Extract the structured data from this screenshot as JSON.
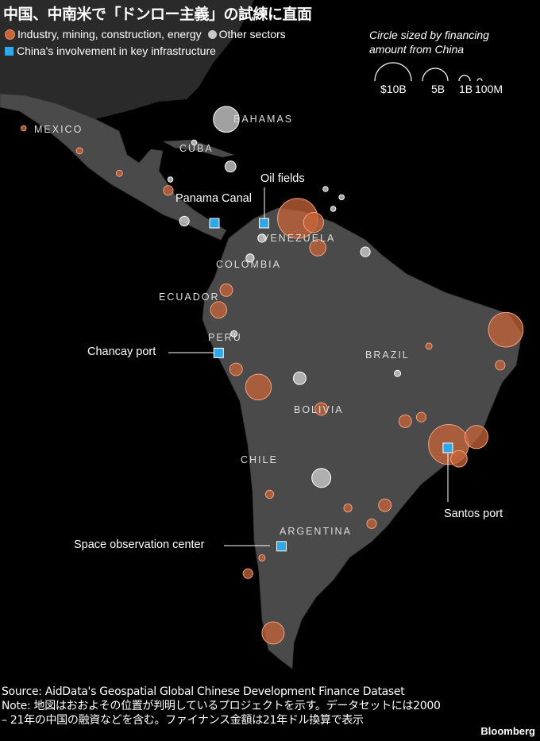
{
  "title": "中国、中南米で「ドンロー主義」の試練に直面",
  "legend": {
    "industry": {
      "label": "Industry, mining, construction, energy",
      "color": "#c8643a"
    },
    "other": {
      "label": "Other sectors",
      "color": "#c8c8c8"
    },
    "infrastructure": {
      "label": "China's involvement in key infrastructure",
      "color": "#2ea8e6"
    },
    "size_title_1": "Circle sized by financing",
    "size_title_2": "amount from China",
    "sizes": [
      "$10B",
      "5B",
      "1B",
      "100M"
    ]
  },
  "countries": [
    "MEXICO",
    "BAHAMAS",
    "CUBA",
    "VENEZUELA",
    "COLOMBIA",
    "ECUADOR",
    "PERU",
    "BRAZIL",
    "BOLIVIA",
    "CHILE",
    "ARGENTINA"
  ],
  "infrastructure": [
    {
      "label": "Panama Canal",
      "lon": -79.7,
      "lat": 9.1
    },
    {
      "label": "Oil fields",
      "lon": -72.6,
      "lat": 9.1
    },
    {
      "label": "Chancay port",
      "lon": -79.1,
      "lat": -9.9
    },
    {
      "label": "Santos port",
      "lon": -46.3,
      "lat": -23.8
    },
    {
      "label": "Space observation center",
      "lon": -70.1,
      "lat": -38.2
    }
  ],
  "projects": [
    {
      "sector": "other",
      "lon": -78.0,
      "lat": 24.3,
      "amount_b": 5
    },
    {
      "sector": "industry",
      "lon": -67.8,
      "lat": 9.8,
      "amount_b": 12
    },
    {
      "sector": "industry",
      "lon": -65.5,
      "lat": 9.2,
      "amount_b": 3
    },
    {
      "sector": "industry",
      "lon": -64.9,
      "lat": 5.5,
      "amount_b": 2
    },
    {
      "sector": "industry",
      "lon": -38.0,
      "lat": -6.5,
      "amount_b": 9
    },
    {
      "sector": "industry",
      "lon": -38.8,
      "lat": -11.7,
      "amount_b": 0.7
    },
    {
      "sector": "industry",
      "lon": -46.2,
      "lat": -23.3,
      "amount_b": 12
    },
    {
      "sector": "industry",
      "lon": -42.2,
      "lat": -22.2,
      "amount_b": 4
    },
    {
      "sector": "industry",
      "lon": -44.7,
      "lat": -25.4,
      "amount_b": 2
    },
    {
      "sector": "industry",
      "lon": -73.4,
      "lat": -14.9,
      "amount_b": 5
    },
    {
      "sector": "industry",
      "lon": -76.6,
      "lat": -12.3,
      "amount_b": 1.2
    },
    {
      "sector": "industry",
      "lon": -79.1,
      "lat": -3.6,
      "amount_b": 2
    },
    {
      "sector": "industry",
      "lon": -78.0,
      "lat": -0.7,
      "amount_b": 1.2
    },
    {
      "sector": "other",
      "lon": -67.5,
      "lat": -13.6,
      "amount_b": 1.2
    },
    {
      "sector": "industry",
      "lon": -64.4,
      "lat": -18.1,
      "amount_b": 1.2
    },
    {
      "sector": "other",
      "lon": -64.4,
      "lat": -28.2,
      "amount_b": 2.7
    },
    {
      "sector": "industry",
      "lon": -71.3,
      "lat": -50.9,
      "amount_b": 3.7
    },
    {
      "sector": "industry",
      "lon": -52.4,
      "lat": -19.9,
      "amount_b": 1.2
    },
    {
      "sector": "industry",
      "lon": -55.3,
      "lat": -32.2,
      "amount_b": 1.2
    },
    {
      "sector": "industry",
      "lon": -50.1,
      "lat": -19.3,
      "amount_b": 0.7
    },
    {
      "sector": "other",
      "lon": -77.4,
      "lat": 17.4,
      "amount_b": 0.9
    },
    {
      "sector": "industry",
      "lon": -99.0,
      "lat": 19.7,
      "amount_b": 0.3
    },
    {
      "sector": "industry",
      "lon": -93.3,
      "lat": 16.4,
      "amount_b": 0.3
    },
    {
      "sector": "industry",
      "lon": -86.3,
      "lat": 13.9,
      "amount_b": 0.7
    },
    {
      "sector": "other",
      "lon": -84.0,
      "lat": 9.4,
      "amount_b": 0.7
    },
    {
      "sector": "other",
      "lon": -74.6,
      "lat": 4.0,
      "amount_b": 0.5
    },
    {
      "sector": "other",
      "lon": -72.9,
      "lat": 6.9,
      "amount_b": 0.5
    },
    {
      "sector": "industry",
      "lon": -49.0,
      "lat": -8.9,
      "amount_b": 0.3
    },
    {
      "sector": "other",
      "lon": -53.5,
      "lat": -12.9,
      "amount_b": 0.3
    },
    {
      "sector": "industry",
      "lon": -71.8,
      "lat": -30.6,
      "amount_b": 0.5
    },
    {
      "sector": "industry",
      "lon": -72.9,
      "lat": -39.9,
      "amount_b": 0.3
    },
    {
      "sector": "industry",
      "lon": -74.9,
      "lat": -42.2,
      "amount_b": 0.7
    },
    {
      "sector": "industry",
      "lon": -60.6,
      "lat": -32.6,
      "amount_b": 0.5
    },
    {
      "sector": "industry",
      "lon": -57.2,
      "lat": -34.9,
      "amount_b": 0.7
    },
    {
      "sector": "other",
      "lon": -76.9,
      "lat": -7.1,
      "amount_b": 0.3
    },
    {
      "sector": "other",
      "lon": -63.8,
      "lat": 14.1,
      "amount_b": 0.2
    },
    {
      "sector": "other",
      "lon": -62.7,
      "lat": 11.2,
      "amount_b": 0.2
    },
    {
      "sector": "other",
      "lon": -61.5,
      "lat": 12.9,
      "amount_b": 0.2
    },
    {
      "sector": "other",
      "lon": -58.1,
      "lat": 4.9,
      "amount_b": 0.7
    },
    {
      "sector": "other",
      "lon": -82.6,
      "lat": 20.9,
      "amount_b": 0.2
    },
    {
      "sector": "industry",
      "lon": -107.0,
      "lat": 23.0,
      "amount_b": 0.2
    },
    {
      "sector": "other",
      "lon": -86.0,
      "lat": 15.5,
      "amount_b": 0.2
    }
  ],
  "footer": {
    "source": "Source: AidData's Geospatial Global Chinese Development Finance Dataset",
    "note": "Note: 地図はおおよその位置が判明しているプロジェクトを示す。データセットには2000 – 21年の中国の融資などを含む。ファイナンス金額は21年ドル換算で表示",
    "brand": "Bloomberg"
  }
}
